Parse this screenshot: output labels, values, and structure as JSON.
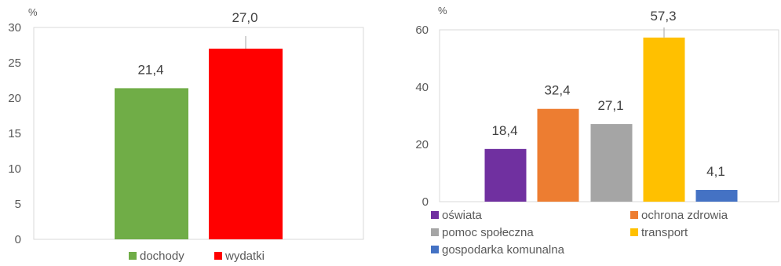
{
  "chart_data": [
    {
      "type": "bar",
      "unit_label": "%",
      "categories": [
        "dochody",
        "wydatki"
      ],
      "values": [
        21.4,
        27.0
      ],
      "value_labels": [
        "21,4",
        "27,0"
      ],
      "colors": [
        "#70ad47",
        "#ff0000"
      ],
      "ylim": [
        0,
        30
      ],
      "yticks": [
        0,
        5,
        10,
        15,
        20,
        25,
        30
      ],
      "grid": false,
      "legend_position": "bottom"
    },
    {
      "type": "bar",
      "unit_label": "%",
      "categories": [
        "oświata",
        "ochrona zdrowia",
        "pomoc społeczna",
        "transport",
        "gospodarka komunalna"
      ],
      "values": [
        18.4,
        32.4,
        27.1,
        57.3,
        4.1
      ],
      "value_labels": [
        "18,4",
        "32,4",
        "27,1",
        "57,3",
        "4,1"
      ],
      "colors": [
        "#7030a0",
        "#ed7d31",
        "#a5a5a5",
        "#ffc000",
        "#4472c4"
      ],
      "ylim": [
        0,
        60
      ],
      "yticks": [
        0,
        20,
        40,
        60
      ],
      "grid": false,
      "legend_position": "bottom"
    }
  ]
}
